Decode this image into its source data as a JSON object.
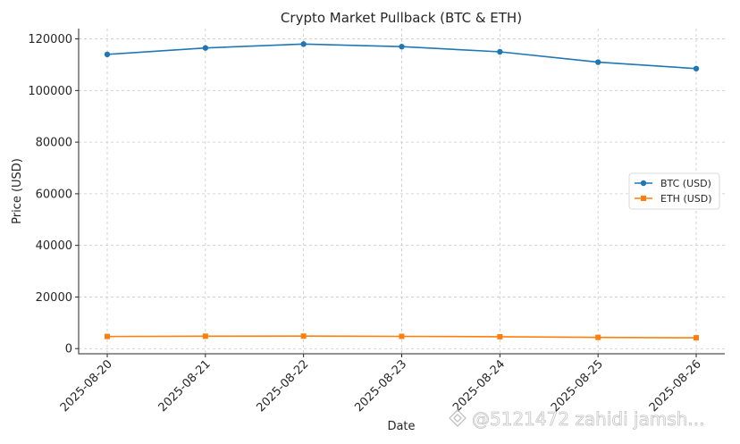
{
  "chart_data": {
    "type": "line",
    "title": "Crypto Market Pullback (BTC & ETH)",
    "xlabel": "Date",
    "ylabel": "Price (USD)",
    "categories": [
      "2025-08-20",
      "2025-08-21",
      "2025-08-22",
      "2025-08-23",
      "2025-08-24",
      "2025-08-25",
      "2025-08-26"
    ],
    "series": [
      {
        "name": "BTC (USD)",
        "values": [
          114000,
          116500,
          118000,
          117000,
          115000,
          111000,
          108500
        ],
        "color": "#1f77b4",
        "marker": "circle"
      },
      {
        "name": "ETH (USD)",
        "values": [
          4700,
          4800,
          4850,
          4750,
          4600,
          4350,
          4200
        ],
        "color": "#ff7f0e",
        "marker": "square"
      }
    ],
    "ylim": [
      -2000,
      124000
    ],
    "yticks": [
      0,
      20000,
      40000,
      60000,
      80000,
      100000,
      120000
    ],
    "grid": true,
    "legend_position": "center-right"
  },
  "watermark": {
    "text": "@5121472 zahidi jamsh..."
  }
}
